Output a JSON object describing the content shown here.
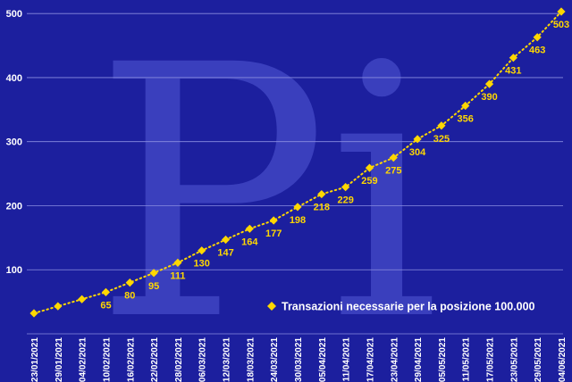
{
  "chart_data": {
    "type": "line",
    "x": [
      "23/01/2021",
      "29/01/2021",
      "04/02/2021",
      "10/02/2021",
      "16/02/2021",
      "22/02/2021",
      "28/02/2021",
      "06/03/2021",
      "12/03/2021",
      "18/03/2021",
      "24/03/2021",
      "30/03/2021",
      "05/04/2021",
      "11/04/2021",
      "17/04/2021",
      "23/04/2021",
      "29/04/2021",
      "05/05/2021",
      "11/05/2021",
      "17/05/2021",
      "23/05/2021",
      "29/05/2021",
      "04/06/2021"
    ],
    "series": [
      {
        "name": "Transazioni necessarie per la posizione 100.000",
        "values": [
          32,
          43,
          54,
          65,
          80,
          95,
          111,
          130,
          147,
          164,
          177,
          198,
          218,
          229,
          259,
          275,
          304,
          325,
          356,
          390,
          431,
          463,
          503
        ]
      }
    ],
    "data_labels": [
      null,
      null,
      null,
      "65",
      "80",
      "95",
      "111",
      "130",
      "147",
      "164",
      "177",
      "198",
      "218",
      "229",
      "259",
      "275",
      "304",
      "325",
      "356",
      "390",
      "431",
      "463",
      "503"
    ],
    "yticks": [
      100,
      200,
      300,
      400,
      500
    ],
    "ylim": [
      0,
      510
    ],
    "grid": true,
    "legend_position": "bottom-right",
    "colors": {
      "background": "#1c1f9e",
      "series": "#ffd700",
      "grid": "#8a8ee0",
      "text": "#ffffff",
      "watermark": "#3a3fbd"
    },
    "watermark": "Pi"
  }
}
